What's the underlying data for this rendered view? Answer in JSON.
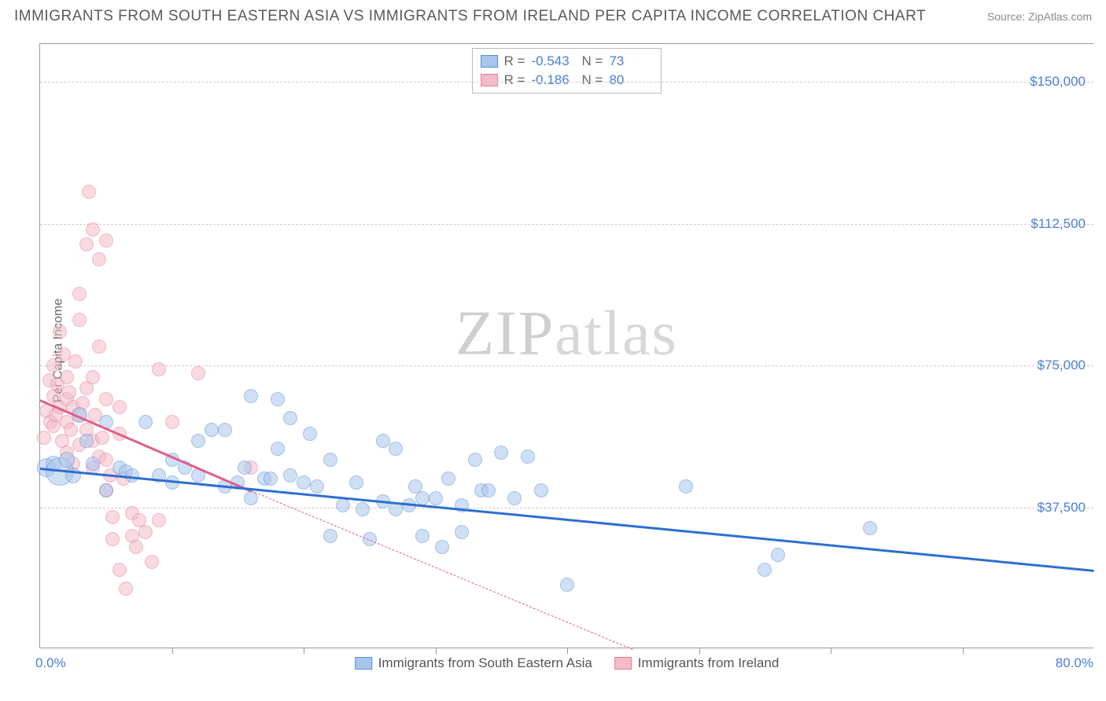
{
  "title": "IMMIGRANTS FROM SOUTH EASTERN ASIA VS IMMIGRANTS FROM IRELAND PER CAPITA INCOME CORRELATION CHART",
  "source": "Source: ZipAtlas.com",
  "watermark_a": "ZIP",
  "watermark_b": "atlas",
  "ylabel": "Per Capita Income",
  "chart": {
    "type": "scatter",
    "xlim": [
      0,
      80
    ],
    "ylim": [
      0,
      160000
    ],
    "x_tick_step": 10,
    "y_ticks": [
      37500,
      75000,
      112500,
      150000
    ],
    "y_tick_labels": [
      "$37,500",
      "$75,000",
      "$112,500",
      "$150,000"
    ],
    "x_min_label": "0.0%",
    "x_max_label": "80.0%",
    "grid_color": "#cccccc",
    "axis_color": "#999999",
    "label_color": "#4a7fd6",
    "background_color": "#ffffff",
    "marker_radius": 9,
    "marker_opacity": 0.55
  },
  "series": [
    {
      "name": "Immigrants from South Eastern Asia",
      "color_fill": "#a8c5ec",
      "color_stroke": "#5b8fd6",
      "trend_color": "#2e6fd0",
      "R": "-0.543",
      "N": "73",
      "trend": {
        "x1": 0,
        "y1": 48000,
        "x2": 80,
        "y2": 21000
      },
      "points": [
        [
          0.5,
          48000,
          12
        ],
        [
          1,
          49000,
          10
        ],
        [
          1.5,
          47000,
          18
        ],
        [
          2,
          50000,
          10
        ],
        [
          2.5,
          46000,
          10
        ],
        [
          3,
          62000,
          10
        ],
        [
          3.5,
          55000,
          9
        ],
        [
          4,
          49000,
          9
        ],
        [
          5,
          42000,
          9
        ],
        [
          5,
          60000,
          9
        ],
        [
          6,
          48000,
          9
        ],
        [
          6.5,
          47000,
          9
        ],
        [
          7,
          46000,
          9
        ],
        [
          8,
          60000,
          9
        ],
        [
          9,
          46000,
          9
        ],
        [
          10,
          50000,
          9
        ],
        [
          10,
          44000,
          9
        ],
        [
          11,
          48000,
          9
        ],
        [
          12,
          46000,
          9
        ],
        [
          12,
          55000,
          9
        ],
        [
          13,
          58000,
          9
        ],
        [
          14,
          43000,
          9
        ],
        [
          14,
          58000,
          9
        ],
        [
          15,
          44000,
          9
        ],
        [
          15.5,
          48000,
          9
        ],
        [
          16,
          67000,
          9
        ],
        [
          16,
          40000,
          9
        ],
        [
          17,
          45000,
          9
        ],
        [
          17.5,
          45000,
          9
        ],
        [
          18,
          53000,
          9
        ],
        [
          18,
          66000,
          9
        ],
        [
          19,
          46000,
          9
        ],
        [
          19,
          61000,
          9
        ],
        [
          20,
          44000,
          9
        ],
        [
          20.5,
          57000,
          9
        ],
        [
          21,
          43000,
          9
        ],
        [
          22,
          50000,
          9
        ],
        [
          22,
          30000,
          9
        ],
        [
          23,
          38000,
          9
        ],
        [
          24,
          44000,
          9
        ],
        [
          24.5,
          37000,
          9
        ],
        [
          25,
          29000,
          9
        ],
        [
          26,
          55000,
          9
        ],
        [
          26,
          39000,
          9
        ],
        [
          27,
          53000,
          9
        ],
        [
          27,
          37000,
          9
        ],
        [
          28,
          38000,
          9
        ],
        [
          28.5,
          43000,
          9
        ],
        [
          29,
          40000,
          9
        ],
        [
          29,
          30000,
          9
        ],
        [
          30,
          40000,
          9
        ],
        [
          30.5,
          27000,
          9
        ],
        [
          31,
          45000,
          9
        ],
        [
          32,
          38000,
          9
        ],
        [
          32,
          31000,
          9
        ],
        [
          33,
          50000,
          9
        ],
        [
          33.5,
          42000,
          9
        ],
        [
          34,
          42000,
          9
        ],
        [
          35,
          52000,
          9
        ],
        [
          36,
          40000,
          9
        ],
        [
          37,
          51000,
          9
        ],
        [
          38,
          42000,
          9
        ],
        [
          40,
          17000,
          9
        ],
        [
          49,
          43000,
          9
        ],
        [
          55,
          21000,
          9
        ],
        [
          56,
          25000,
          9
        ],
        [
          63,
          32000,
          9
        ]
      ]
    },
    {
      "name": "Immigrants from Ireland",
      "color_fill": "#f4bcc8",
      "color_stroke": "#e77d9a",
      "trend_color": "#e15f85",
      "R": "-0.186",
      "N": "80",
      "trend": {
        "x1": 0,
        "y1": 66000,
        "x2": 16,
        "y2": 42000
      },
      "trend_dash": {
        "x1": 16,
        "y1": 42000,
        "x2": 45,
        "y2": 0
      },
      "points": [
        [
          0.3,
          56000,
          9
        ],
        [
          0.5,
          63000,
          9
        ],
        [
          0.7,
          71000,
          9
        ],
        [
          0.8,
          60000,
          9
        ],
        [
          1,
          67000,
          9
        ],
        [
          1,
          75000,
          9
        ],
        [
          1,
          59000,
          9
        ],
        [
          1.2,
          62000,
          9
        ],
        [
          1.3,
          70000,
          9
        ],
        [
          1.5,
          64000,
          9
        ],
        [
          1.5,
          84000,
          9
        ],
        [
          1.7,
          55000,
          9
        ],
        [
          1.8,
          78000,
          9
        ],
        [
          2,
          66000,
          9
        ],
        [
          2,
          60000,
          9
        ],
        [
          2,
          52000,
          9
        ],
        [
          2,
          72000,
          9
        ],
        [
          2.2,
          68000,
          9
        ],
        [
          2.3,
          58000,
          9
        ],
        [
          2.5,
          64000,
          9
        ],
        [
          2.5,
          49000,
          9
        ],
        [
          2.7,
          76000,
          9
        ],
        [
          3,
          87000,
          9
        ],
        [
          3,
          62000,
          9
        ],
        [
          3,
          54000,
          9
        ],
        [
          3,
          94000,
          9
        ],
        [
          3.2,
          65000,
          9
        ],
        [
          3.5,
          107000,
          9
        ],
        [
          3.5,
          58000,
          9
        ],
        [
          3.5,
          69000,
          9
        ],
        [
          3.7,
          121000,
          9
        ],
        [
          4,
          72000,
          9
        ],
        [
          4,
          48000,
          9
        ],
        [
          4,
          111000,
          9
        ],
        [
          4,
          55000,
          9
        ],
        [
          4.2,
          62000,
          9
        ],
        [
          4.5,
          80000,
          9
        ],
        [
          4.5,
          103000,
          9
        ],
        [
          4.5,
          51000,
          9
        ],
        [
          4.7,
          56000,
          9
        ],
        [
          5,
          50000,
          9
        ],
        [
          5,
          108000,
          9
        ],
        [
          5,
          42000,
          9
        ],
        [
          5,
          66000,
          9
        ],
        [
          5.3,
          46000,
          9
        ],
        [
          5.5,
          29000,
          9
        ],
        [
          5.5,
          35000,
          9
        ],
        [
          6,
          57000,
          9
        ],
        [
          6,
          21000,
          9
        ],
        [
          6,
          64000,
          9
        ],
        [
          6.3,
          45000,
          9
        ],
        [
          6.5,
          16000,
          9
        ],
        [
          7,
          36000,
          9
        ],
        [
          7,
          30000,
          9
        ],
        [
          7.3,
          27000,
          9
        ],
        [
          7.5,
          34000,
          9
        ],
        [
          8,
          31000,
          9
        ],
        [
          8.5,
          23000,
          9
        ],
        [
          9,
          74000,
          9
        ],
        [
          9,
          34000,
          9
        ],
        [
          10,
          60000,
          9
        ],
        [
          12,
          73000,
          9
        ],
        [
          16,
          48000,
          9
        ]
      ]
    }
  ],
  "legend": {
    "series1": "Immigrants from South Eastern Asia",
    "series2": "Immigrants from Ireland"
  }
}
